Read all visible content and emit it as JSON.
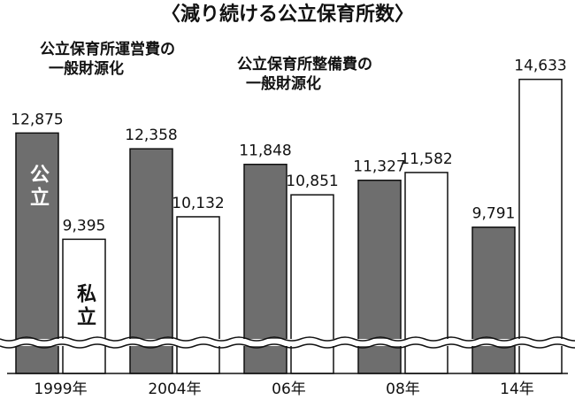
{
  "chart_data": {
    "type": "bar",
    "title": "〈減り続ける公立保育所数〉",
    "annotations": [
      {
        "lines": [
          "公立保育所運営費の",
          "一般財源化"
        ]
      },
      {
        "lines": [
          "公立保育所整備費の",
          "一般財源化"
        ]
      }
    ],
    "categories": [
      "1999年",
      "2004年",
      "06年",
      "08年",
      "14年"
    ],
    "series": [
      {
        "name": "公立",
        "color": "#6e6e6e",
        "values": [
          12875,
          12358,
          11848,
          11327,
          9791
        ],
        "value_labels": [
          "12,875",
          "12,358",
          "11,848",
          "11,327",
          "9,791"
        ]
      },
      {
        "name": "私立",
        "color": "#ffffff",
        "values": [
          9395,
          10132,
          10851,
          11582,
          14633
        ],
        "value_labels": [
          "9,395",
          "10,132",
          "10,851",
          "11,582",
          "14,633"
        ]
      }
    ],
    "ylim": [
      5000,
      15000
    ],
    "axis_break": true
  }
}
